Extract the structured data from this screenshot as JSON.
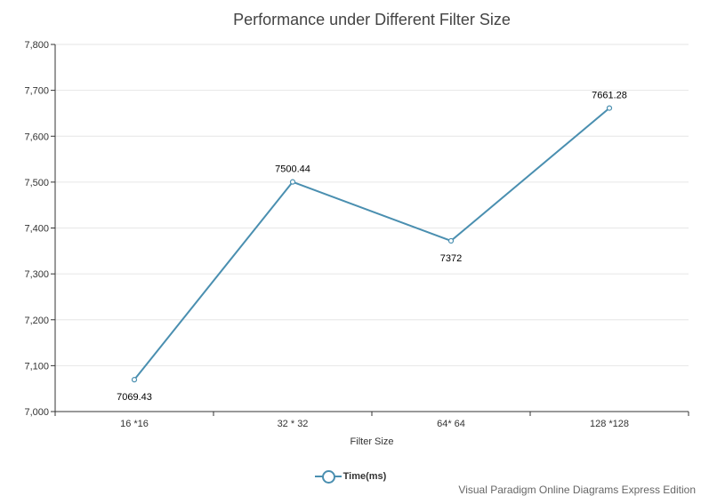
{
  "chart_data": {
    "type": "line",
    "title": "Performance under Different Filter Size",
    "xlabel": "Filter Size",
    "ylabel": "",
    "categories": [
      "16 *16",
      "32 * 32",
      "64* 64",
      "128 *128"
    ],
    "series": [
      {
        "name": "Time(ms)",
        "values": [
          7069.43,
          7500.44,
          7372,
          7661.28
        ]
      }
    ],
    "data_labels": [
      "7069.43",
      "7500.44",
      "7372",
      "7661.28"
    ],
    "ylim": [
      7000,
      7800
    ],
    "yticks": [
      7000,
      7100,
      7200,
      7300,
      7400,
      7500,
      7600,
      7700,
      7800
    ],
    "ytick_labels": [
      "7,000",
      "7,100",
      "7,200",
      "7,300",
      "7,400",
      "7,500",
      "7,600",
      "7,700",
      "7,800"
    ],
    "grid": true,
    "legend": "bottom",
    "colors": {
      "line": "#4a8fb0",
      "grid": "#e6e6e6",
      "axis": "#333333"
    }
  },
  "watermark": "Visual Paradigm Online Diagrams Express Edition"
}
